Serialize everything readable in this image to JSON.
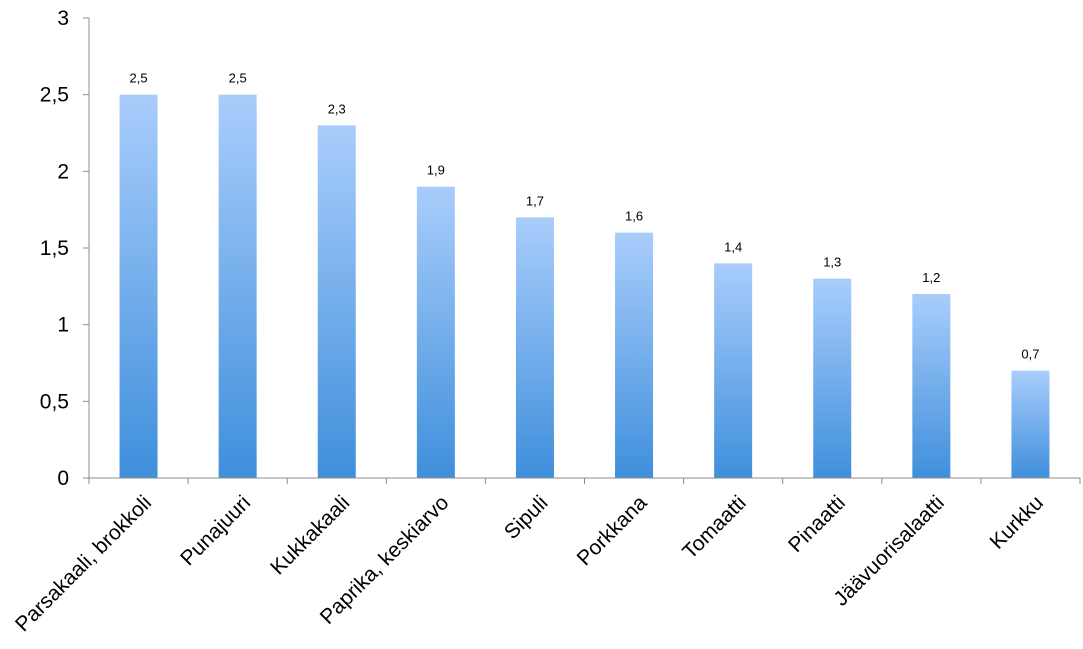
{
  "chart_data": {
    "type": "bar",
    "title": "",
    "xlabel": "",
    "ylabel": "",
    "categories": [
      "Parsakaali, brokkoli",
      "Punajuuri",
      "Kukkakaali",
      "Paprika, keskiarvo",
      "Sipuli",
      "Porkkana",
      "Tomaatti",
      "Pinaatti",
      "Jäävuorisalaatti",
      "Kurkku"
    ],
    "values": [
      2.5,
      2.5,
      2.3,
      1.9,
      1.7,
      1.6,
      1.4,
      1.3,
      1.2,
      0.7
    ],
    "data_labels": [
      "2,5",
      "2,5",
      "2,3",
      "1,9",
      "1,7",
      "1,6",
      "1,4",
      "1,3",
      "1,2",
      "0,7"
    ],
    "ylim": [
      0,
      3
    ],
    "yticks": [
      0,
      0.5,
      1,
      1.5,
      2,
      2.5,
      3
    ],
    "ytick_labels": [
      "0",
      "0,5",
      "1",
      "1,5",
      "2",
      "2,5",
      "3"
    ],
    "grid": false,
    "legend": "none",
    "colors": {
      "bar_top": "#a9cdfb",
      "bar_bottom": "#3f8fdc",
      "axis": "#8c8c8c"
    }
  }
}
